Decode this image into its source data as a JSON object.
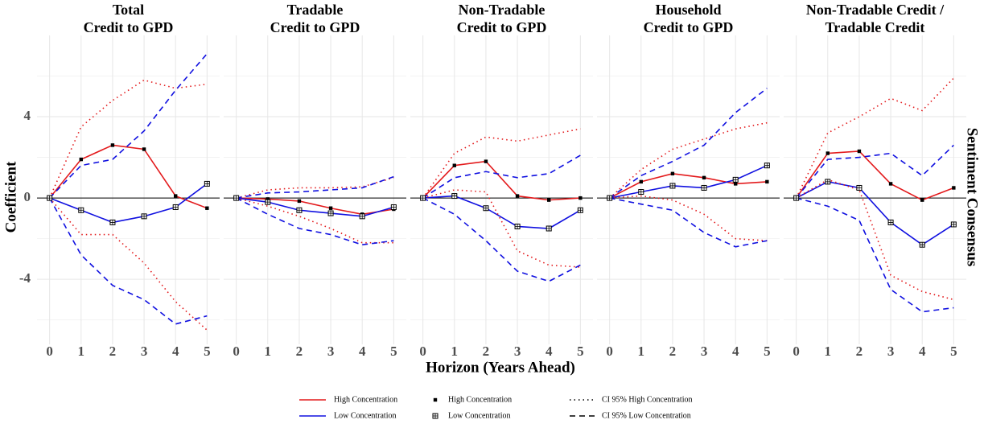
{
  "xlabel": "Horizon (Years Ahead)",
  "ylabel": "Coefficient",
  "strip_label": "Sentiment Consensus",
  "legend": {
    "lines": [
      {
        "name": "High Concentration",
        "color": "#e31a1c"
      },
      {
        "name": "Low Concentration",
        "color": "#1010e0"
      }
    ],
    "markers": [
      {
        "name": "High Concentration",
        "marker": "filled"
      },
      {
        "name": "Low Concentration",
        "marker": "crossed"
      }
    ],
    "linetypes": [
      {
        "name": "CI 95% High Concentration",
        "dash": "dotted"
      },
      {
        "name": "CI 95% Low Concentration",
        "dash": "dashed"
      }
    ]
  },
  "chart_data": [
    {
      "type": "line",
      "title": [
        "Total",
        "Credit to GPD"
      ],
      "x": [
        0,
        1,
        2,
        3,
        4,
        5
      ],
      "xlim": [
        -0.4,
        5.4
      ],
      "xticks": [
        0,
        1,
        2,
        3,
        4,
        5
      ],
      "ylim": [
        -7.2,
        8.0
      ],
      "yticks": [
        4,
        0,
        -4
      ],
      "hline": 0,
      "grid": true,
      "series": [
        {
          "color": "#e31a1c",
          "dash": "solid",
          "marker": "filled",
          "values": [
            0,
            1.9,
            2.6,
            2.4,
            0.1,
            -0.5
          ]
        },
        {
          "color": "#1010e0",
          "dash": "solid",
          "marker": "crossed",
          "values": [
            0,
            -0.6,
            -1.2,
            -0.9,
            -0.45,
            0.7
          ]
        },
        {
          "color": "#e31a1c",
          "dash": "dotted",
          "values": [
            0,
            3.5,
            4.8,
            5.8,
            5.4,
            5.6
          ]
        },
        {
          "color": "#e31a1c",
          "dash": "dotted",
          "values": [
            0,
            -1.8,
            -1.8,
            -3.2,
            -5.1,
            -6.5
          ]
        },
        {
          "color": "#1010e0",
          "dash": "dashed",
          "values": [
            0,
            1.6,
            1.9,
            3.3,
            5.3,
            7.1
          ]
        },
        {
          "color": "#1010e0",
          "dash": "dashed",
          "values": [
            0,
            -2.8,
            -4.3,
            -5.0,
            -6.2,
            -5.8
          ]
        }
      ]
    },
    {
      "type": "line",
      "title": [
        "Tradable",
        "Credit to GPD"
      ],
      "x": [
        0,
        1,
        2,
        3,
        4,
        5
      ],
      "xlim": [
        -0.4,
        5.4
      ],
      "xticks": [
        0,
        1,
        2,
        3,
        4,
        5
      ],
      "ylim": [
        -7.2,
        8.0
      ],
      "yticks": [
        4,
        0,
        -4
      ],
      "hline": 0,
      "grid": true,
      "series": [
        {
          "color": "#e31a1c",
          "dash": "solid",
          "marker": "filled",
          "values": [
            0,
            -0.05,
            -0.15,
            -0.5,
            -0.8,
            -0.55
          ]
        },
        {
          "color": "#1010e0",
          "dash": "solid",
          "marker": "crossed",
          "values": [
            0,
            -0.2,
            -0.6,
            -0.75,
            -0.9,
            -0.45
          ]
        },
        {
          "color": "#e31a1c",
          "dash": "dotted",
          "values": [
            0,
            0.4,
            0.5,
            0.5,
            0.55,
            1.0
          ]
        },
        {
          "color": "#e31a1c",
          "dash": "dotted",
          "values": [
            0,
            -0.4,
            -0.9,
            -1.5,
            -2.2,
            -2.2
          ]
        },
        {
          "color": "#1010e0",
          "dash": "dashed",
          "values": [
            0,
            0.25,
            0.3,
            0.4,
            0.5,
            1.05
          ]
        },
        {
          "color": "#1010e0",
          "dash": "dashed",
          "values": [
            0,
            -0.8,
            -1.5,
            -1.8,
            -2.3,
            -2.1
          ]
        }
      ]
    },
    {
      "type": "line",
      "title": [
        "Non-Tradable",
        "Credit to GPD"
      ],
      "x": [
        0,
        1,
        2,
        3,
        4,
        5
      ],
      "xlim": [
        -0.4,
        5.4
      ],
      "xticks": [
        0,
        1,
        2,
        3,
        4,
        5
      ],
      "ylim": [
        -7.2,
        8.0
      ],
      "yticks": [
        4,
        0,
        -4
      ],
      "hline": 0,
      "grid": true,
      "series": [
        {
          "color": "#e31a1c",
          "dash": "solid",
          "marker": "filled",
          "values": [
            0,
            1.6,
            1.8,
            0.1,
            -0.1,
            0.0
          ]
        },
        {
          "color": "#1010e0",
          "dash": "solid",
          "marker": "crossed",
          "values": [
            0,
            0.1,
            -0.5,
            -1.4,
            -1.5,
            -0.6
          ]
        },
        {
          "color": "#e31a1c",
          "dash": "dotted",
          "values": [
            0,
            2.2,
            3.0,
            2.8,
            3.1,
            3.4
          ]
        },
        {
          "color": "#e31a1c",
          "dash": "dotted",
          "values": [
            0,
            0.4,
            0.3,
            -2.6,
            -3.3,
            -3.4
          ]
        },
        {
          "color": "#1010e0",
          "dash": "dashed",
          "values": [
            0,
            1.0,
            1.3,
            1.0,
            1.2,
            2.1
          ]
        },
        {
          "color": "#1010e0",
          "dash": "dashed",
          "values": [
            0,
            -0.8,
            -2.1,
            -3.6,
            -4.1,
            -3.3
          ]
        }
      ]
    },
    {
      "type": "line",
      "title": [
        "Household",
        "Credit to GPD"
      ],
      "x": [
        0,
        1,
        2,
        3,
        4,
        5
      ],
      "xlim": [
        -0.4,
        5.4
      ],
      "xticks": [
        0,
        1,
        2,
        3,
        4,
        5
      ],
      "ylim": [
        -7.2,
        8.0
      ],
      "yticks": [
        4,
        0,
        -4
      ],
      "hline": 0,
      "grid": true,
      "series": [
        {
          "color": "#e31a1c",
          "dash": "solid",
          "marker": "filled",
          "values": [
            0,
            0.8,
            1.2,
            1.0,
            0.7,
            0.8
          ]
        },
        {
          "color": "#1010e0",
          "dash": "solid",
          "marker": "crossed",
          "values": [
            0,
            0.3,
            0.6,
            0.5,
            0.9,
            1.6
          ]
        },
        {
          "color": "#e31a1c",
          "dash": "dotted",
          "values": [
            0,
            1.4,
            2.4,
            2.9,
            3.4,
            3.7
          ]
        },
        {
          "color": "#e31a1c",
          "dash": "dotted",
          "values": [
            0,
            0.1,
            -0.1,
            -0.8,
            -2.0,
            -2.1
          ]
        },
        {
          "color": "#1010e0",
          "dash": "dashed",
          "values": [
            0,
            1.1,
            1.8,
            2.6,
            4.2,
            5.4
          ]
        },
        {
          "color": "#1010e0",
          "dash": "dashed",
          "values": [
            0,
            -0.3,
            -0.6,
            -1.7,
            -2.4,
            -2.1
          ]
        }
      ]
    },
    {
      "type": "line",
      "title": [
        "Non-Tradable Credit /",
        "Tradable Credit"
      ],
      "x": [
        0,
        1,
        2,
        3,
        4,
        5
      ],
      "xlim": [
        -0.4,
        5.4
      ],
      "xticks": [
        0,
        1,
        2,
        3,
        4,
        5
      ],
      "ylim": [
        -7.2,
        8.0
      ],
      "yticks": [
        4,
        0,
        -4
      ],
      "hline": 0,
      "grid": true,
      "series": [
        {
          "color": "#e31a1c",
          "dash": "solid",
          "marker": "filled",
          "values": [
            0,
            2.2,
            2.3,
            0.7,
            -0.1,
            0.5
          ]
        },
        {
          "color": "#1010e0",
          "dash": "solid",
          "marker": "crossed",
          "values": [
            0,
            0.8,
            0.5,
            -1.2,
            -2.3,
            -1.3
          ]
        },
        {
          "color": "#e31a1c",
          "dash": "dotted",
          "values": [
            0,
            3.2,
            4.0,
            4.9,
            4.3,
            5.9
          ]
        },
        {
          "color": "#e31a1c",
          "dash": "dotted",
          "values": [
            0,
            0.9,
            0.4,
            -3.8,
            -4.6,
            -5.0
          ]
        },
        {
          "color": "#1010e0",
          "dash": "dashed",
          "values": [
            0,
            1.9,
            2.0,
            2.2,
            1.1,
            2.6
          ]
        },
        {
          "color": "#1010e0",
          "dash": "dashed",
          "values": [
            0,
            -0.4,
            -1.1,
            -4.5,
            -5.6,
            -5.4
          ]
        }
      ]
    }
  ]
}
